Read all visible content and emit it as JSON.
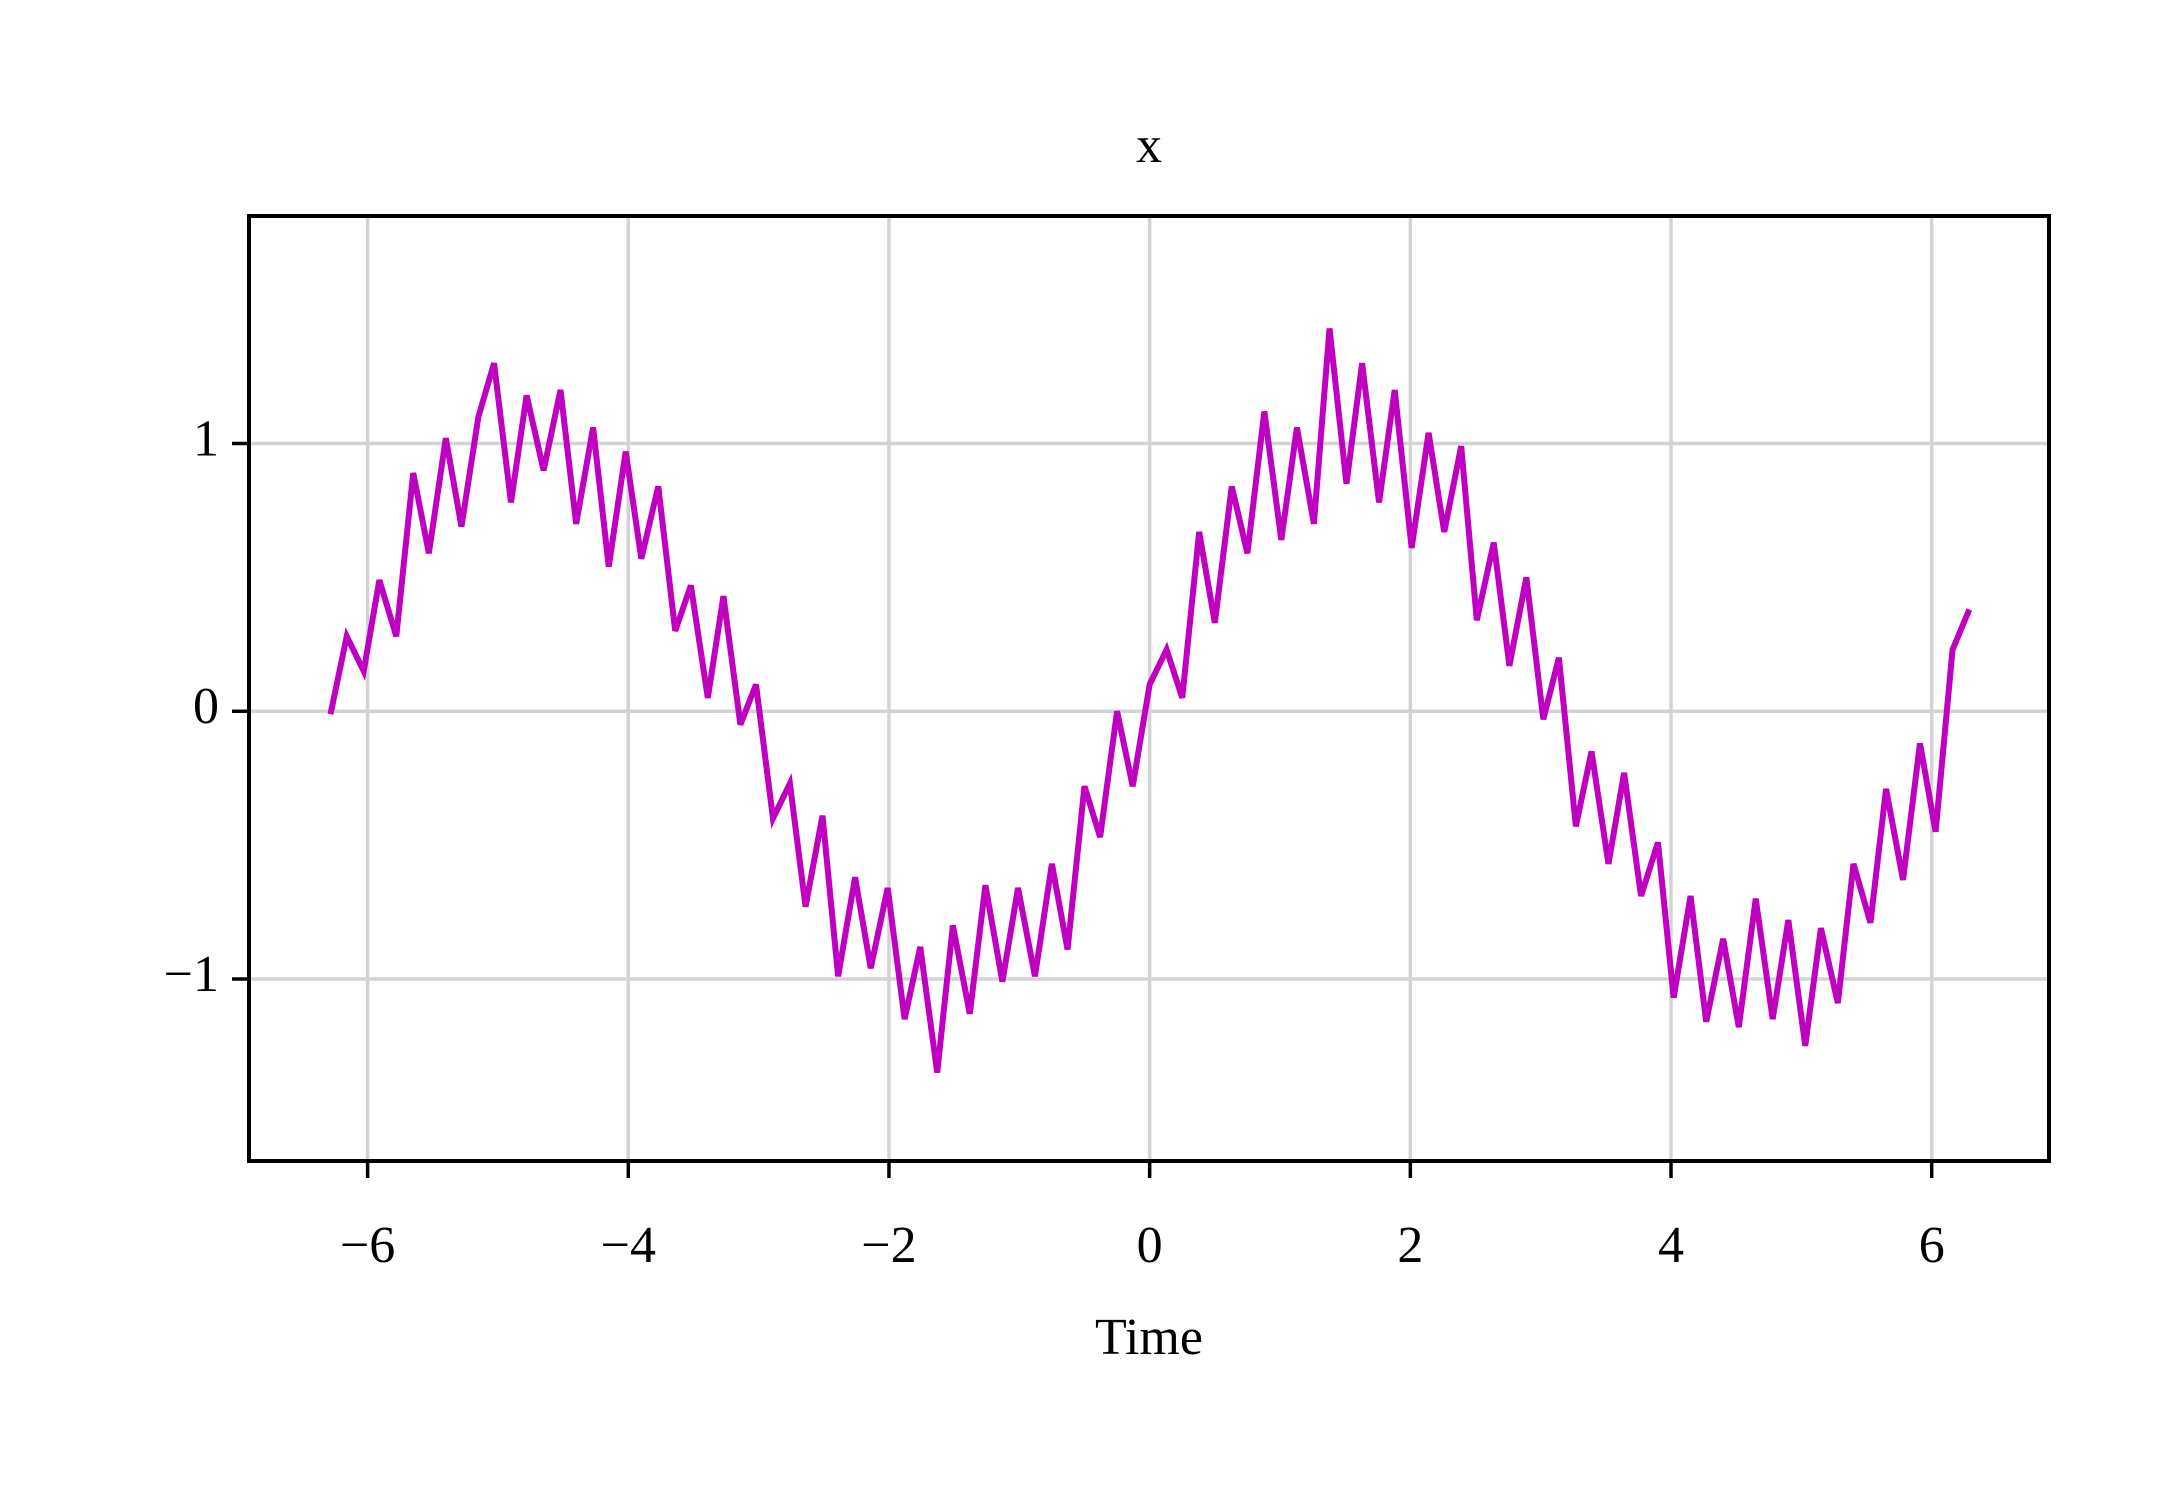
{
  "chart_data": {
    "type": "line",
    "title": "x",
    "x_label": "Time",
    "color": "#c000c0",
    "grid": true,
    "x": [
      -6.28,
      -6.16,
      -6.03,
      -5.91,
      -5.78,
      -5.65,
      -5.53,
      -5.4,
      -5.28,
      -5.15,
      -5.03,
      -4.9,
      -4.78,
      -4.65,
      -4.52,
      -4.4,
      -4.27,
      -4.15,
      -4.02,
      -3.9,
      -3.77,
      -3.64,
      -3.52,
      -3.39,
      -3.27,
      -3.14,
      -3.02,
      -2.89,
      -2.76,
      -2.64,
      -2.51,
      -2.39,
      -2.26,
      -2.14,
      -2.01,
      -1.88,
      -1.76,
      -1.63,
      -1.51,
      -1.38,
      -1.26,
      -1.13,
      -1.01,
      -0.88,
      -0.75,
      -0.63,
      -0.5,
      -0.38,
      -0.25,
      -0.13,
      0,
      0.13,
      0.25,
      0.38,
      0.5,
      0.63,
      0.75,
      0.88,
      1.01,
      1.13,
      1.26,
      1.38,
      1.51,
      1.63,
      1.76,
      1.88,
      2.01,
      2.14,
      2.26,
      2.39,
      2.51,
      2.64,
      2.76,
      2.89,
      3.02,
      3.14,
      3.27,
      3.39,
      3.52,
      3.64,
      3.77,
      3.9,
      4.02,
      4.15,
      4.27,
      4.4,
      4.52,
      4.65,
      4.78,
      4.9,
      5.03,
      5.15,
      5.28,
      5.4,
      5.53,
      5.65,
      5.78,
      5.91,
      6.03,
      6.16,
      6.28
    ],
    "values": [
      0,
      0.28,
      0.15,
      0.49,
      0.28,
      0.89,
      0.59,
      1.02,
      0.69,
      1.1,
      1.3,
      0.78,
      1.18,
      0.9,
      1.2,
      0.7,
      1.06,
      0.54,
      0.97,
      0.57,
      0.84,
      0.3,
      0.47,
      0.05,
      0.43,
      -0.05,
      0.1,
      -0.4,
      -0.27,
      -0.73,
      -0.39,
      -0.99,
      -0.62,
      -0.96,
      -0.66,
      -1.15,
      -0.88,
      -1.35,
      -0.8,
      -1.13,
      -0.65,
      -1.01,
      -0.66,
      -0.99,
      -0.57,
      -0.89,
      -0.28,
      -0.47,
      0,
      -0.28,
      0.1,
      0.23,
      0.05,
      0.67,
      0.33,
      0.84,
      0.59,
      1.12,
      0.64,
      1.06,
      0.7,
      1.43,
      0.85,
      1.3,
      0.78,
      1.2,
      0.61,
      1.04,
      0.67,
      0.99,
      0.34,
      0.63,
      0.17,
      0.5,
      -0.03,
      0.2,
      -0.43,
      -0.15,
      -0.57,
      -0.23,
      -0.69,
      -0.49,
      -1.07,
      -0.69,
      -1.16,
      -0.85,
      -1.18,
      -0.7,
      -1.15,
      -0.78,
      -1.25,
      -0.81,
      -1.09,
      -0.57,
      -0.79,
      -0.29,
      -0.63,
      -0.12,
      -0.45,
      0.23,
      0.37
    ],
    "xlim": [
      -6.91,
      6.9
    ],
    "ylim": [
      -1.68,
      1.85
    ],
    "xticks": [
      {
        "value": -6,
        "label": "−6"
      },
      {
        "value": -4,
        "label": "−4"
      },
      {
        "value": -2,
        "label": "−2"
      },
      0,
      2,
      4,
      6
    ],
    "yticks": [
      {
        "value": -1,
        "label": "−1"
      },
      0,
      1
    ]
  }
}
